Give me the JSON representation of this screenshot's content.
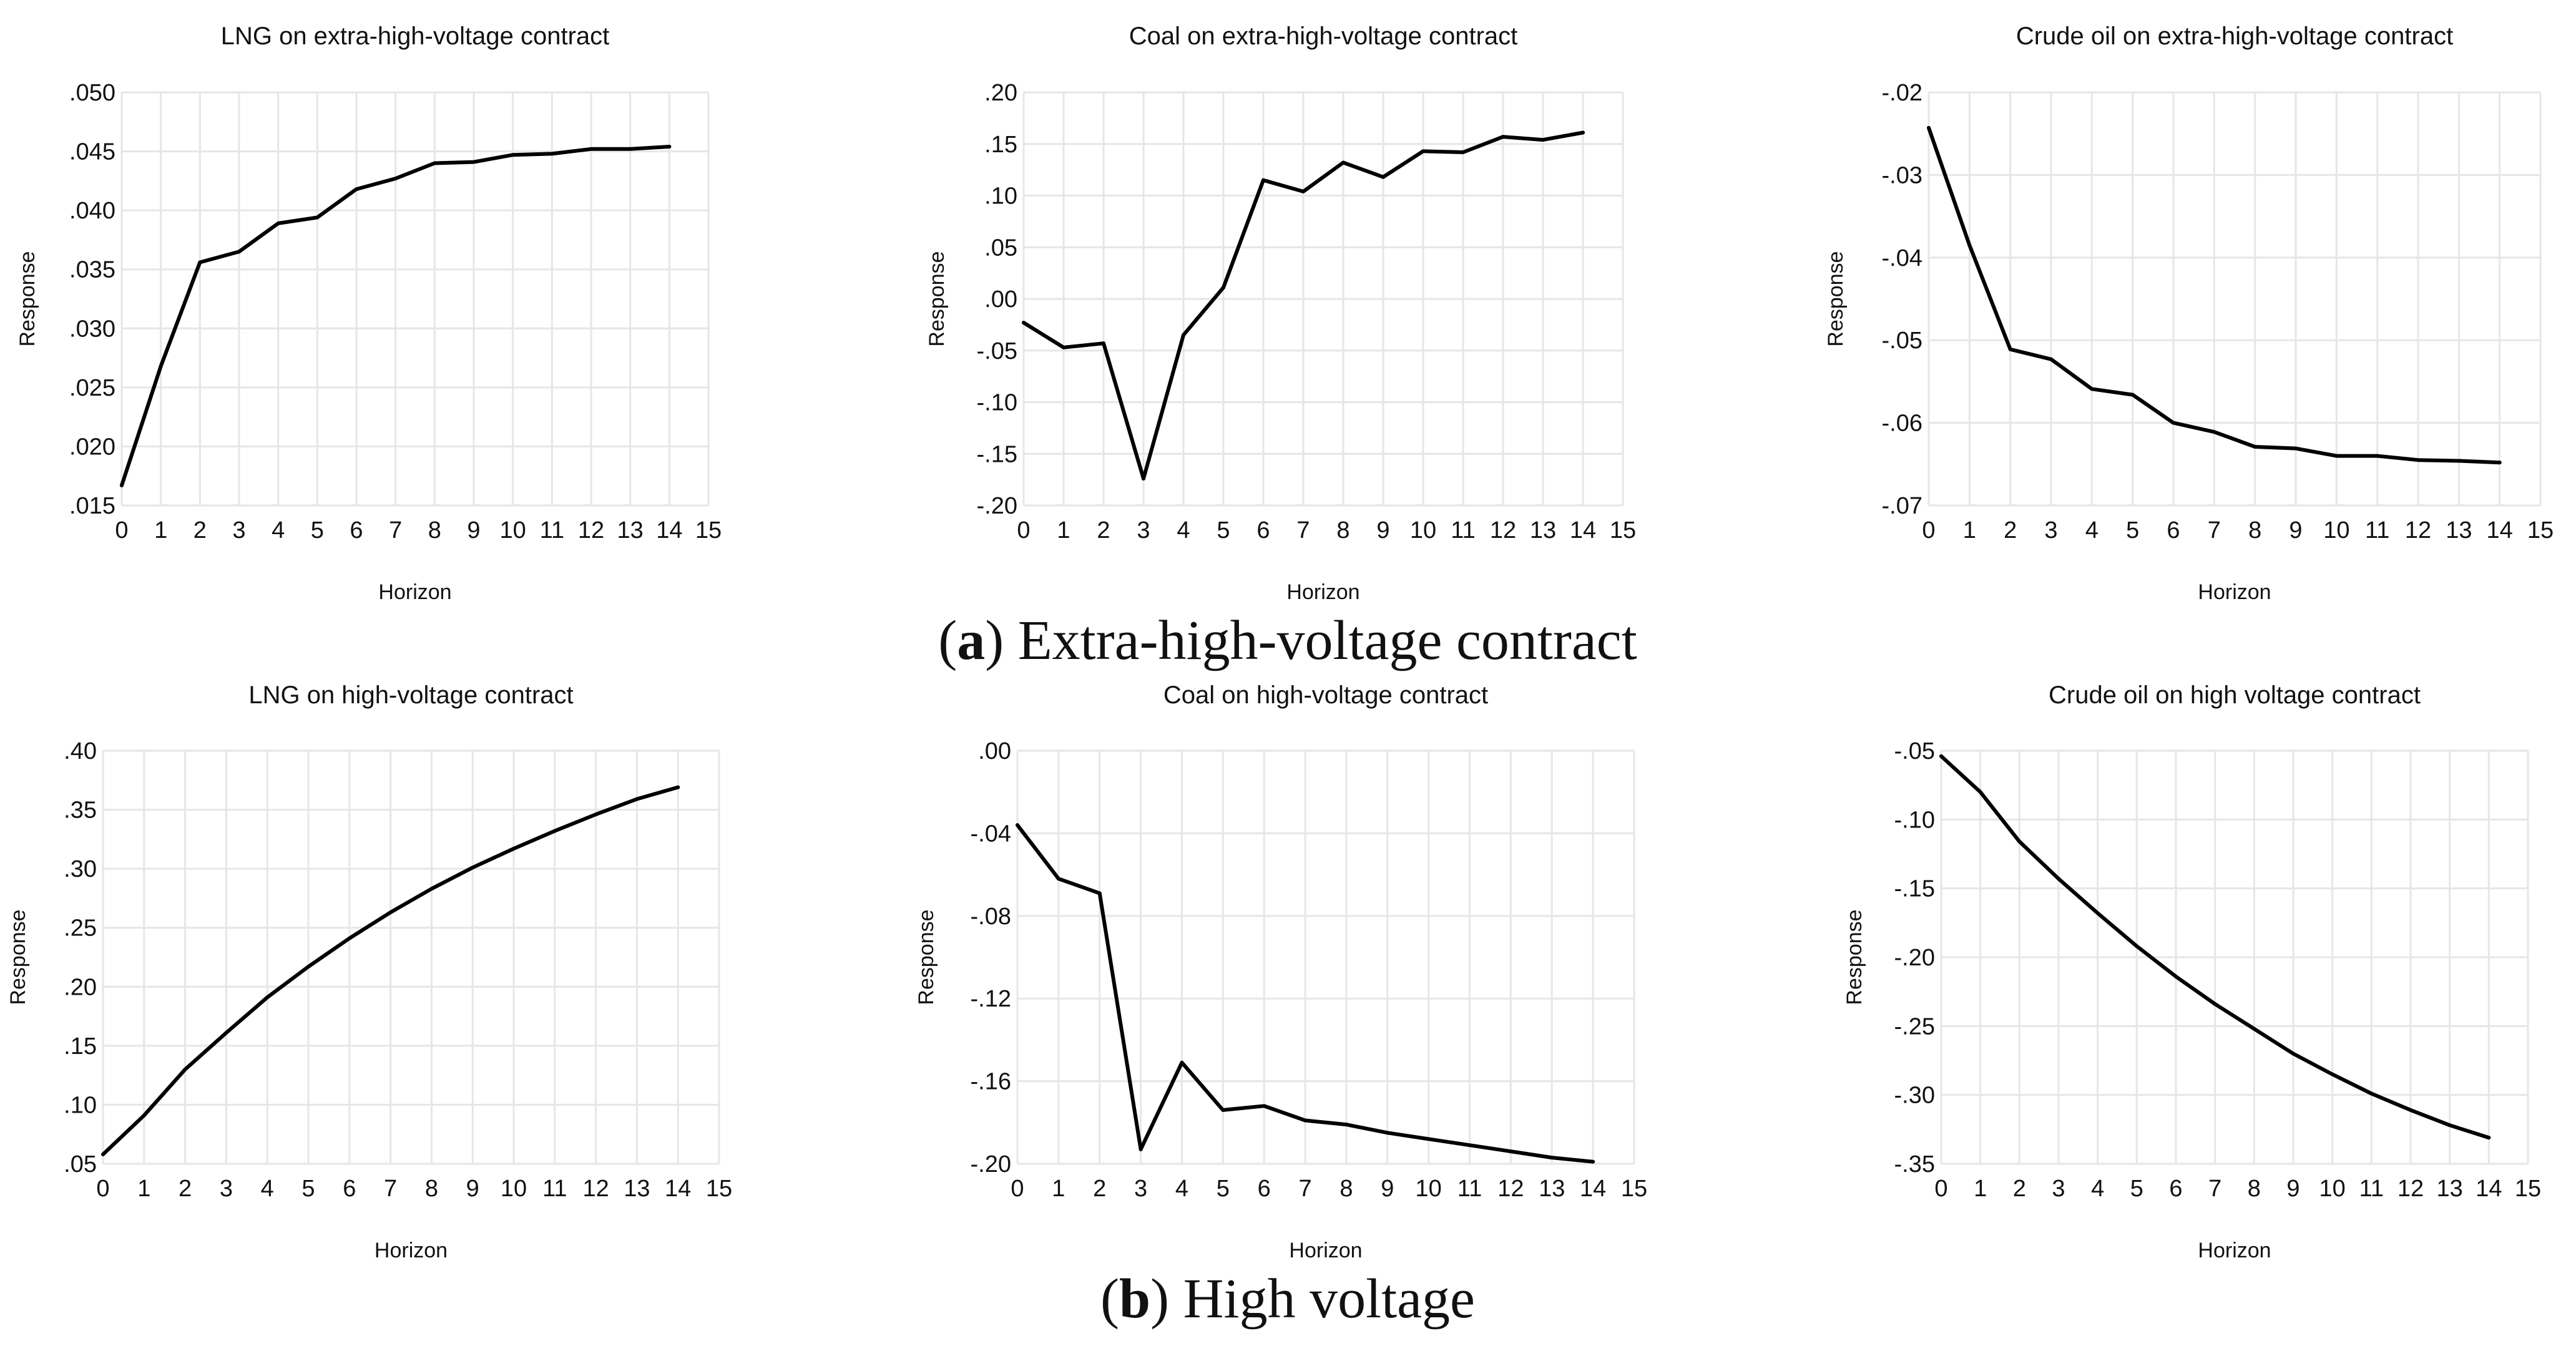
{
  "captions": {
    "a": {
      "letter": "a",
      "text": "Extra-high-voltage contract"
    },
    "b": {
      "letter": "b",
      "text": "High voltage"
    }
  },
  "chart_data": [
    {
      "type": "line",
      "title": "LNG on extra-high-voltage contract",
      "xlabel": "Horizon",
      "ylabel": "Response",
      "x": [
        0,
        1,
        2,
        3,
        4,
        5,
        6,
        7,
        8,
        9,
        10,
        11,
        12,
        13,
        14
      ],
      "xticks": [
        "0",
        "1",
        "2",
        "3",
        "4",
        "5",
        "6",
        "7",
        "8",
        "9",
        "10",
        "11",
        "12",
        "13",
        "14",
        "15"
      ],
      "xlim": [
        0,
        15
      ],
      "ylim": [
        0.015,
        0.05
      ],
      "yticks": [
        0.05,
        0.045,
        0.04,
        0.035,
        0.03,
        0.025,
        0.02,
        0.015
      ],
      "ytick_labels": [
        ".050",
        ".045",
        ".040",
        ".035",
        ".030",
        ".025",
        ".020",
        ".015"
      ],
      "series": [
        {
          "name": "Response",
          "values": [
            0.0167,
            0.0268,
            0.0356,
            0.0365,
            0.0389,
            0.0394,
            0.0418,
            0.0427,
            0.044,
            0.0441,
            0.0447,
            0.0448,
            0.0452,
            0.0452,
            0.0454
          ]
        }
      ]
    },
    {
      "type": "line",
      "title": "Coal on extra-high-voltage contract",
      "xlabel": "Horizon",
      "ylabel": "Response",
      "x": [
        0,
        1,
        2,
        3,
        4,
        5,
        6,
        7,
        8,
        9,
        10,
        11,
        12,
        13,
        14
      ],
      "xticks": [
        "0",
        "1",
        "2",
        "3",
        "4",
        "5",
        "6",
        "7",
        "8",
        "9",
        "10",
        "11",
        "12",
        "13",
        "14",
        "15"
      ],
      "xlim": [
        0,
        15
      ],
      "ylim": [
        -0.2,
        0.2
      ],
      "yticks": [
        0.2,
        0.15,
        0.1,
        0.05,
        0.0,
        -0.05,
        -0.1,
        -0.15,
        -0.2
      ],
      "ytick_labels": [
        ".20",
        ".15",
        ".10",
        ".05",
        ".00",
        "-.05",
        "-.10",
        "-.15",
        "-.20"
      ],
      "series": [
        {
          "name": "Response",
          "values": [
            -0.023,
            -0.047,
            -0.043,
            -0.174,
            -0.035,
            0.011,
            0.115,
            0.104,
            0.132,
            0.118,
            0.143,
            0.142,
            0.157,
            0.154,
            0.161
          ]
        }
      ]
    },
    {
      "type": "line",
      "title": "Crude oil on extra-high-voltage contract",
      "xlabel": "Horizon",
      "ylabel": "Response",
      "x": [
        0,
        1,
        2,
        3,
        4,
        5,
        6,
        7,
        8,
        9,
        10,
        11,
        12,
        13,
        14
      ],
      "xticks": [
        "0",
        "1",
        "2",
        "3",
        "4",
        "5",
        "6",
        "7",
        "8",
        "9",
        "10",
        "11",
        "12",
        "13",
        "14",
        "15"
      ],
      "xlim": [
        0,
        15
      ],
      "ylim": [
        -0.07,
        -0.02
      ],
      "yticks": [
        -0.02,
        -0.03,
        -0.04,
        -0.05,
        -0.06,
        -0.07
      ],
      "ytick_labels": [
        "-.02",
        "-.03",
        "-.04",
        "-.05",
        "-.06",
        "-.07"
      ],
      "series": [
        {
          "name": "Response",
          "values": [
            -0.0243,
            -0.0385,
            -0.0511,
            -0.0523,
            -0.0559,
            -0.0566,
            -0.06,
            -0.0611,
            -0.0629,
            -0.0631,
            -0.064,
            -0.064,
            -0.0645,
            -0.0646,
            -0.0648
          ]
        }
      ]
    },
    {
      "type": "line",
      "title": "LNG on high-voltage contract",
      "xlabel": "Horizon",
      "ylabel": "Response",
      "x": [
        0,
        1,
        2,
        3,
        4,
        5,
        6,
        7,
        8,
        9,
        10,
        11,
        12,
        13,
        14
      ],
      "xticks": [
        "0",
        "1",
        "2",
        "3",
        "4",
        "5",
        "6",
        "7",
        "8",
        "9",
        "10",
        "11",
        "12",
        "13",
        "14",
        "15"
      ],
      "xlim": [
        0,
        15
      ],
      "ylim": [
        0.05,
        0.4
      ],
      "yticks": [
        0.4,
        0.35,
        0.3,
        0.25,
        0.2,
        0.15,
        0.1,
        0.05
      ],
      "ytick_labels": [
        ".40",
        ".35",
        ".30",
        ".25",
        ".20",
        ".15",
        ".10",
        ".05"
      ],
      "series": [
        {
          "name": "Response",
          "values": [
            0.058,
            0.091,
            0.13,
            0.161,
            0.191,
            0.217,
            0.241,
            0.263,
            0.283,
            0.301,
            0.317,
            0.332,
            0.346,
            0.359,
            0.369
          ]
        }
      ]
    },
    {
      "type": "line",
      "title": "Coal on high-voltage contract",
      "xlabel": "Horizon",
      "ylabel": "Response",
      "x": [
        0,
        1,
        2,
        3,
        4,
        5,
        6,
        7,
        8,
        9,
        10,
        11,
        12,
        13,
        14
      ],
      "xticks": [
        "0",
        "1",
        "2",
        "3",
        "4",
        "5",
        "6",
        "7",
        "8",
        "9",
        "10",
        "11",
        "12",
        "13",
        "14",
        "15"
      ],
      "xlim": [
        0,
        15
      ],
      "ylim": [
        -0.2,
        0.0
      ],
      "yticks": [
        0.0,
        -0.04,
        -0.08,
        -0.12,
        -0.16,
        -0.2
      ],
      "ytick_labels": [
        ".00",
        "-.04",
        "-.08",
        "-.12",
        "-.16",
        "-.20"
      ],
      "series": [
        {
          "name": "Response",
          "values": [
            -0.036,
            -0.062,
            -0.069,
            -0.193,
            -0.151,
            -0.174,
            -0.172,
            -0.179,
            -0.181,
            -0.185,
            -0.188,
            -0.191,
            -0.194,
            -0.197,
            -0.199
          ]
        }
      ]
    },
    {
      "type": "line",
      "title": "Crude oil on high voltage contract",
      "xlabel": "Horizon",
      "ylabel": "Response",
      "x": [
        0,
        1,
        2,
        3,
        4,
        5,
        6,
        7,
        8,
        9,
        10,
        11,
        12,
        13,
        14
      ],
      "xticks": [
        "0",
        "1",
        "2",
        "3",
        "4",
        "5",
        "6",
        "7",
        "8",
        "9",
        "10",
        "11",
        "12",
        "13",
        "14",
        "15"
      ],
      "xlim": [
        0,
        15
      ],
      "ylim": [
        -0.35,
        -0.05
      ],
      "yticks": [
        -0.05,
        -0.1,
        -0.15,
        -0.2,
        -0.25,
        -0.3,
        -0.35
      ],
      "ytick_labels": [
        "-.05",
        "-.10",
        "-.15",
        "-.20",
        "-.25",
        "-.30",
        "-.35"
      ],
      "series": [
        {
          "name": "Response",
          "values": [
            -0.054,
            -0.08,
            -0.116,
            -0.143,
            -0.168,
            -0.192,
            -0.214,
            -0.234,
            -0.252,
            -0.27,
            -0.285,
            -0.299,
            -0.311,
            -0.322,
            -0.331
          ]
        }
      ]
    }
  ]
}
